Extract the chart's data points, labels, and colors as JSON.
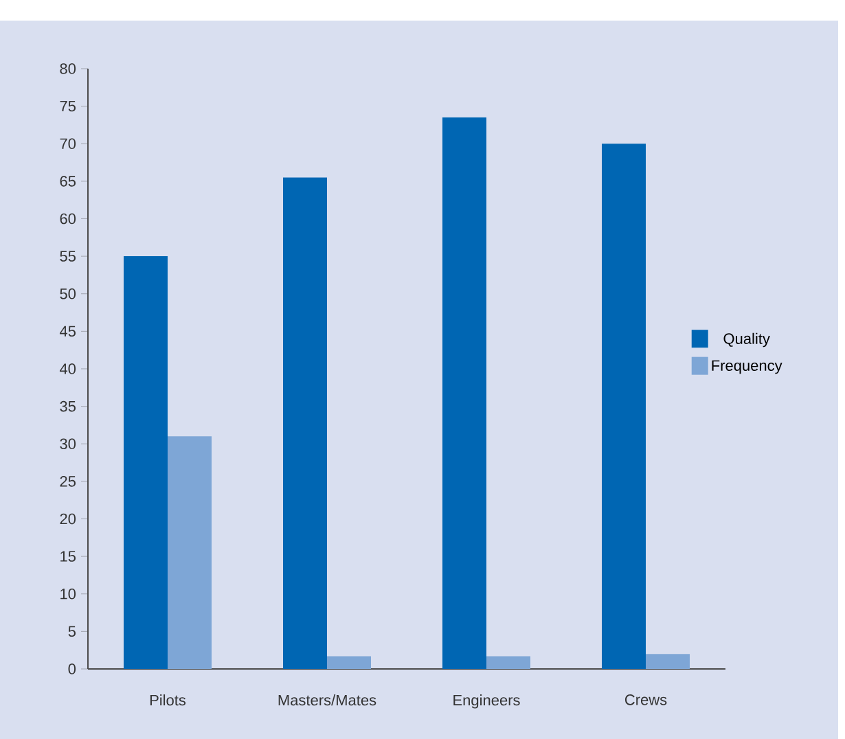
{
  "chart_data": {
    "type": "bar",
    "categories": [
      "Pilots",
      "Masters/Mates",
      "Engineers",
      "Crews"
    ],
    "series": [
      {
        "name": "Quality",
        "color": "#0066b3",
        "values": [
          55,
          65.5,
          73.5,
          70
        ]
      },
      {
        "name": "Frequency",
        "color": "#7ea6d6",
        "values": [
          31,
          1.7,
          1.7,
          2
        ]
      }
    ],
    "ylim": [
      0,
      80
    ],
    "yticks": [
      0,
      5,
      10,
      15,
      20,
      25,
      30,
      35,
      40,
      45,
      50,
      55,
      60,
      65,
      70,
      75,
      80
    ],
    "legend": "right"
  }
}
